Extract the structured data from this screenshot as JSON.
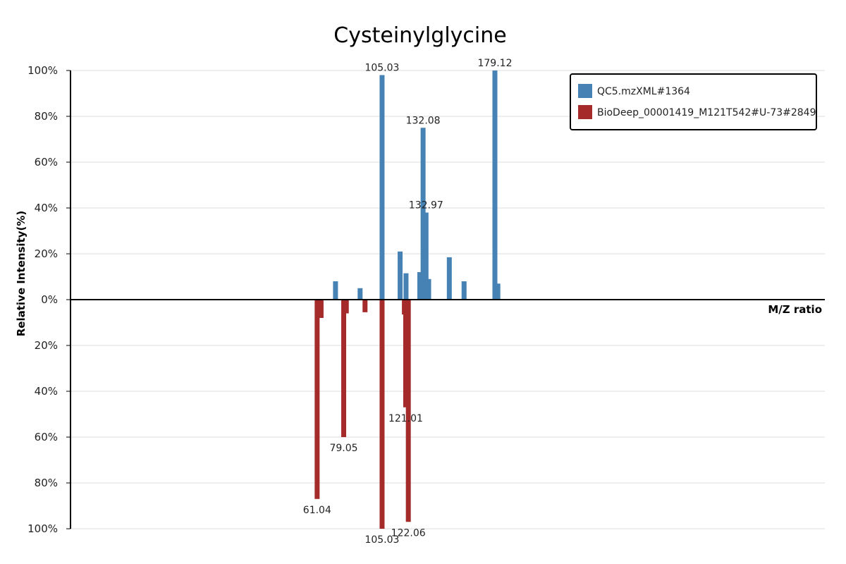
{
  "chart_data": {
    "type": "bar",
    "title": "Cysteinylglycine",
    "xlabel": "M/Z ratio",
    "ylabel": "Relative Intensity(%)",
    "xlim": [
      0,
      230
    ],
    "ylim": [
      -100,
      100
    ],
    "grid": true,
    "legend_position": "top-right",
    "y_ticks": [
      {
        "value": 100,
        "label": "100%"
      },
      {
        "value": 80,
        "label": "80%"
      },
      {
        "value": 60,
        "label": "60%"
      },
      {
        "value": 40,
        "label": "40%"
      },
      {
        "value": 20,
        "label": "20%"
      },
      {
        "value": 0,
        "label": "0%"
      },
      {
        "value": -20,
        "label": "20%"
      },
      {
        "value": -40,
        "label": "40%"
      },
      {
        "value": -60,
        "label": "60%"
      },
      {
        "value": -80,
        "label": "80%"
      },
      {
        "value": -100,
        "label": "100%"
      }
    ],
    "series": [
      {
        "name": "QC5.mzXML#1364",
        "color": "#4682b4",
        "direction": "up",
        "peaks": [
          {
            "mz": 80.8,
            "intensity": 8
          },
          {
            "mz": 88.3,
            "intensity": 5
          },
          {
            "mz": 95.0,
            "intensity": 98,
            "label": "105.03"
          },
          {
            "mz": 100.5,
            "intensity": 21
          },
          {
            "mz": 102.3,
            "intensity": 11.5
          },
          {
            "mz": 106.5,
            "intensity": 12
          },
          {
            "mz": 107.5,
            "intensity": 75,
            "label": "132.08"
          },
          {
            "mz": 108.4,
            "intensity": 38,
            "label": "132.97"
          },
          {
            "mz": 109.2,
            "intensity": 9
          },
          {
            "mz": 115.5,
            "intensity": 18.5
          },
          {
            "mz": 120.0,
            "intensity": 8
          },
          {
            "mz": 129.4,
            "intensity": 100,
            "label": "179.12"
          },
          {
            "mz": 130.3,
            "intensity": 7
          }
        ]
      },
      {
        "name": "BioDeep_00001419_M121T542#U-73#2849",
        "color": "#a52a2a",
        "direction": "down",
        "peaks": [
          {
            "mz": 75.2,
            "intensity": 87,
            "label": "61.04"
          },
          {
            "mz": 76.4,
            "intensity": 8
          },
          {
            "mz": 83.3,
            "intensity": 60,
            "label": "79.05"
          },
          {
            "mz": 84.1,
            "intensity": 6
          },
          {
            "mz": 89.8,
            "intensity": 5.5
          },
          {
            "mz": 95.0,
            "intensity": 100,
            "label": "105.03"
          },
          {
            "mz": 101.8,
            "intensity": 6.5
          },
          {
            "mz": 102.2,
            "intensity": 47,
            "label": "121.01"
          },
          {
            "mz": 103.0,
            "intensity": 97,
            "label": "122.06"
          }
        ]
      }
    ]
  }
}
